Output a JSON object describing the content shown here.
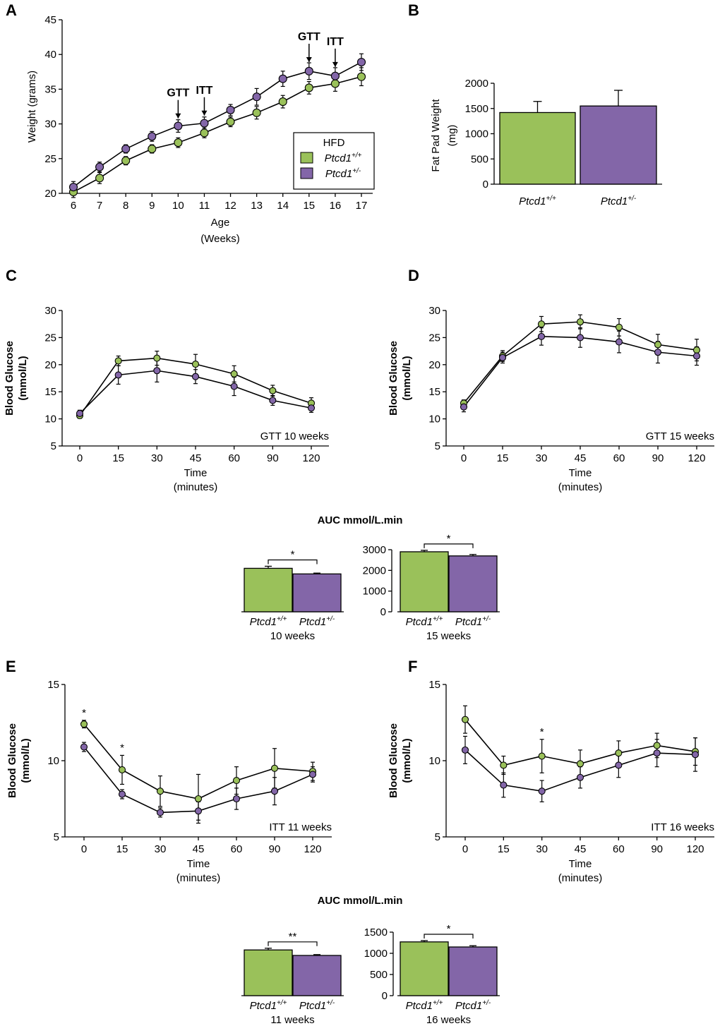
{
  "colors": {
    "wt": "#9ac15a",
    "het": "#8366a8",
    "axis": "#000000"
  },
  "chart_data": [
    {
      "id": "A",
      "type": "line",
      "panel": "A",
      "xlabel": "Age",
      "xlabel2": "(Weeks)",
      "ylabel": "Weight (grams)",
      "categories": [
        "6",
        "7",
        "8",
        "9",
        "10",
        "11",
        "12",
        "13",
        "14",
        "15",
        "16",
        "17"
      ],
      "ylim": [
        20,
        45
      ],
      "yticks": [
        "20",
        "25",
        "30",
        "35",
        "40",
        "45"
      ],
      "series": [
        {
          "name": "Ptcd1+/+",
          "color_key": "wt",
          "values": [
            20.2,
            22.2,
            24.7,
            26.4,
            27.3,
            28.7,
            30.3,
            31.6,
            33.2,
            35.2,
            35.8,
            36.8
          ],
          "errors": [
            0.8,
            0.8,
            0.6,
            0.6,
            0.7,
            0.7,
            0.7,
            0.9,
            0.9,
            0.9,
            1.1,
            1.3
          ]
        },
        {
          "name": "Ptcd1+/-",
          "color_key": "het",
          "values": [
            20.9,
            23.8,
            26.4,
            28.2,
            29.7,
            30.1,
            32.0,
            33.9,
            36.5,
            37.6,
            36.9,
            38.9
          ],
          "errors": [
            0.8,
            0.7,
            0.6,
            0.7,
            0.9,
            0.9,
            0.8,
            1.2,
            1.1,
            1.2,
            1.2,
            1.2
          ]
        }
      ],
      "legend": {
        "title": "HFD",
        "entries": [
          {
            "base": "Ptcd1",
            "sup": "+/+",
            "color_key": "wt"
          },
          {
            "base": "Ptcd1",
            "sup": "+/-",
            "color_key": "het"
          }
        ]
      },
      "annotations": [
        {
          "text": "GTT",
          "at": "10"
        },
        {
          "text": "ITT",
          "at": "11"
        },
        {
          "text": "GTT",
          "at": "15"
        },
        {
          "text": "ITT",
          "at": "16"
        }
      ]
    },
    {
      "id": "B",
      "type": "bar",
      "panel": "B",
      "ylabel": "Fat Pad Weight",
      "ylabel2": "(mg)",
      "ylim": [
        0,
        2000
      ],
      "yticks": [
        "0",
        "500",
        "1000",
        "1500",
        "2000"
      ],
      "bars": [
        {
          "base": "Ptcd1",
          "sup": "+/+",
          "value": 1420,
          "error": 220,
          "color_key": "wt"
        },
        {
          "base": "Ptcd1",
          "sup": "+/-",
          "value": 1550,
          "error": 310,
          "color_key": "het"
        }
      ]
    },
    {
      "id": "C",
      "type": "line",
      "panel": "C",
      "xlabel": "Time",
      "xlabel2": "(minutes)",
      "ylabel": "Blood Glucose",
      "ylabel2": "(mmol/L)",
      "categories": [
        "0",
        "15",
        "30",
        "45",
        "60",
        "90",
        "120"
      ],
      "ylim": [
        5,
        30
      ],
      "yticks": [
        "5",
        "10",
        "15",
        "20",
        "25",
        "30"
      ],
      "note": "GTT 10 weeks",
      "series": [
        {
          "name": "Ptcd1+/+",
          "color_key": "wt",
          "values": [
            10.6,
            20.7,
            21.2,
            20.1,
            18.3,
            15.2,
            12.9
          ],
          "errors": [
            0.5,
            0.9,
            1.3,
            1.8,
            1.5,
            1.0,
            1.0
          ]
        },
        {
          "name": "Ptcd1+/-",
          "color_key": "het",
          "values": [
            11.0,
            18.1,
            18.9,
            17.8,
            16.0,
            13.4,
            12.0
          ],
          "errors": [
            0.6,
            1.7,
            2.1,
            1.3,
            1.7,
            0.9,
            0.8
          ]
        }
      ],
      "stars": []
    },
    {
      "id": "D",
      "type": "line",
      "panel": "D",
      "xlabel": "Time",
      "xlabel2": "(minutes)",
      "ylabel": "Blood Glucose",
      "ylabel2": "(mmol/L)",
      "categories": [
        "0",
        "15",
        "30",
        "45",
        "60",
        "90",
        "120"
      ],
      "ylim": [
        5,
        30
      ],
      "yticks": [
        "5",
        "10",
        "15",
        "20",
        "25",
        "30"
      ],
      "note": "GTT 15 weeks",
      "series": [
        {
          "name": "Ptcd1+/+",
          "color_key": "wt",
          "values": [
            12.9,
            21.6,
            27.5,
            27.9,
            26.9,
            23.7,
            22.7
          ],
          "errors": [
            0.6,
            1.0,
            1.4,
            1.3,
            1.6,
            1.9,
            2.0
          ]
        },
        {
          "name": "Ptcd1+/-",
          "color_key": "het",
          "values": [
            12.2,
            21.3,
            25.2,
            25.0,
            24.2,
            22.3,
            21.6
          ],
          "errors": [
            0.9,
            1.0,
            1.6,
            1.8,
            2.0,
            2.0,
            1.7
          ]
        }
      ],
      "stars": []
    },
    {
      "id": "AUC_GTT",
      "type": "bar",
      "panel": "AUC_GTT",
      "title": "AUC mmol/L.min",
      "ylim": [
        0,
        3000
      ],
      "yticks": [
        "0",
        "1000",
        "2000",
        "3000"
      ],
      "groups": [
        {
          "label": "10 weeks",
          "sig": "*",
          "bars": [
            {
              "base": "Ptcd1",
              "sup": "+/+",
              "value": 2100,
              "error": 100,
              "color_key": "wt"
            },
            {
              "base": "Ptcd1",
              "sup": "+/-",
              "value": 1830,
              "error": 40,
              "color_key": "het"
            }
          ]
        },
        {
          "label": "15 weeks",
          "sig": "*",
          "bars": [
            {
              "base": "Ptcd1",
              "sup": "+/+",
              "value": 2900,
              "error": 70,
              "color_key": "wt"
            },
            {
              "base": "Ptcd1",
              "sup": "+/-",
              "value": 2700,
              "error": 70,
              "color_key": "het"
            }
          ]
        }
      ]
    },
    {
      "id": "E",
      "type": "line",
      "panel": "E",
      "xlabel": "Time",
      "xlabel2": "(minutes)",
      "ylabel": "Blood Glucose",
      "ylabel2": "(mmol/L)",
      "categories": [
        "0",
        "15",
        "30",
        "45",
        "60",
        "90",
        "120"
      ],
      "ylim": [
        5,
        15
      ],
      "yticks": [
        "5",
        "10",
        "15"
      ],
      "note": "ITT 11 weeks",
      "series": [
        {
          "name": "Ptcd1+/+",
          "color_key": "wt",
          "values": [
            12.4,
            9.4,
            8.0,
            7.5,
            8.7,
            9.5,
            9.3
          ],
          "errors": [
            0.25,
            0.95,
            1.0,
            1.6,
            0.9,
            1.3,
            0.6
          ]
        },
        {
          "name": "Ptcd1+/-",
          "color_key": "het",
          "values": [
            10.9,
            7.8,
            6.6,
            6.7,
            7.5,
            8.0,
            9.1
          ],
          "errors": [
            0.3,
            0.3,
            0.3,
            0.6,
            0.7,
            0.9,
            0.5
          ]
        }
      ],
      "stars": [
        {
          "at": "0",
          "text": "*"
        },
        {
          "at": "15",
          "text": "*"
        }
      ]
    },
    {
      "id": "F",
      "type": "line",
      "panel": "F",
      "xlabel": "Time",
      "xlabel2": "(minutes)",
      "ylabel": "Blood Glucose",
      "ylabel2": "(mmol/L)",
      "categories": [
        "0",
        "15",
        "30",
        "45",
        "60",
        "90",
        "120"
      ],
      "ylim": [
        5,
        15
      ],
      "yticks": [
        "5",
        "10",
        "15"
      ],
      "note": "ITT 16 weeks",
      "series": [
        {
          "name": "Ptcd1+/+",
          "color_key": "wt",
          "values": [
            12.7,
            9.7,
            10.3,
            9.8,
            10.5,
            11.0,
            10.6
          ],
          "errors": [
            0.9,
            0.6,
            1.1,
            0.9,
            0.8,
            0.8,
            0.9
          ]
        },
        {
          "name": "Ptcd1+/-",
          "color_key": "het",
          "values": [
            10.7,
            8.4,
            8.0,
            8.9,
            9.7,
            10.5,
            10.4
          ],
          "errors": [
            0.9,
            0.8,
            0.7,
            0.7,
            0.8,
            0.9,
            1.1
          ]
        }
      ],
      "stars": [
        {
          "at": "30",
          "text": "*"
        }
      ]
    },
    {
      "id": "AUC_ITT",
      "type": "bar",
      "panel": "AUC_ITT",
      "title": "AUC mmol/L.min",
      "ylim": [
        0,
        1500
      ],
      "yticks": [
        "0",
        "500",
        "1000",
        "1500"
      ],
      "groups": [
        {
          "label": "11 weeks",
          "sig": "**",
          "bars": [
            {
              "base": "Ptcd1",
              "sup": "+/+",
              "value": 1080,
              "error": 40,
              "color_key": "wt"
            },
            {
              "base": "Ptcd1",
              "sup": "+/-",
              "value": 950,
              "error": 20,
              "color_key": "het"
            }
          ]
        },
        {
          "label": "16 weeks",
          "sig": "*",
          "bars": [
            {
              "base": "Ptcd1",
              "sup": "+/+",
              "value": 1270,
              "error": 30,
              "color_key": "wt"
            },
            {
              "base": "Ptcd1",
              "sup": "+/-",
              "value": 1150,
              "error": 30,
              "color_key": "het"
            }
          ]
        }
      ]
    }
  ]
}
